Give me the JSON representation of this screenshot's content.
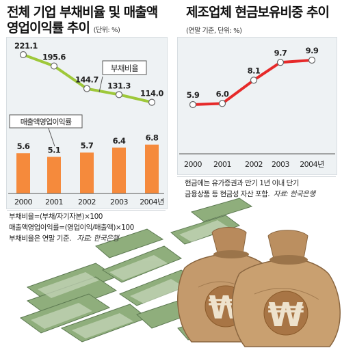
{
  "left": {
    "title_line1": "전체 기업 부채비율 및 매출액",
    "title_line2": "영업이익률 추이",
    "unit": "(단위: %)",
    "notes": [
      "부채비율=(부채/자기자본)×100",
      "매출액영업이익률=(영업이익/매출액)×100",
      "부채비율은 연말 기준."
    ],
    "source": "자료: 한국은행"
  },
  "right": {
    "title": "제조업체 현금보유비중 추이",
    "unit": "(연말 기준, 단위: %)",
    "notes": [
      "현금에는 유가증권과 만기 1년 이내 단기",
      "금융상품 등 현금성 자산 포함."
    ],
    "source": "자료: 한국은행"
  },
  "colors": {
    "green": "#9ec83a",
    "orange": "#f58a3c",
    "red": "#e62a2a",
    "panel": "#eef2f4"
  },
  "illustration": [
    "won-money-bag-icon",
    "banknote-stack-icon"
  ],
  "chart_data": [
    {
      "type": "line+bar",
      "categories": [
        "2000",
        "2001",
        "2002",
        "2003",
        "2004년"
      ],
      "series": [
        {
          "name": "부채비율",
          "type": "line",
          "values": [
            221.1,
            195.6,
            144.7,
            131.3,
            114.0
          ],
          "labels": [
            "221.1",
            "195.6",
            "144.7",
            "131.3",
            "114.0"
          ]
        },
        {
          "name": "매출액영업이익률",
          "type": "bar",
          "values": [
            5.6,
            5.1,
            5.7,
            6.4,
            6.8
          ],
          "labels": [
            "5.6",
            "5.1",
            "5.7",
            "6.4",
            "6.8"
          ]
        }
      ]
    },
    {
      "type": "line",
      "categories": [
        "2000",
        "2001",
        "2002",
        "2003",
        "2004년"
      ],
      "series": [
        {
          "values": [
            5.9,
            6.0,
            8.1,
            9.7,
            9.9
          ],
          "labels": [
            "5.9",
            "6.0",
            "8.1",
            "9.7",
            "9.9"
          ]
        }
      ]
    }
  ]
}
